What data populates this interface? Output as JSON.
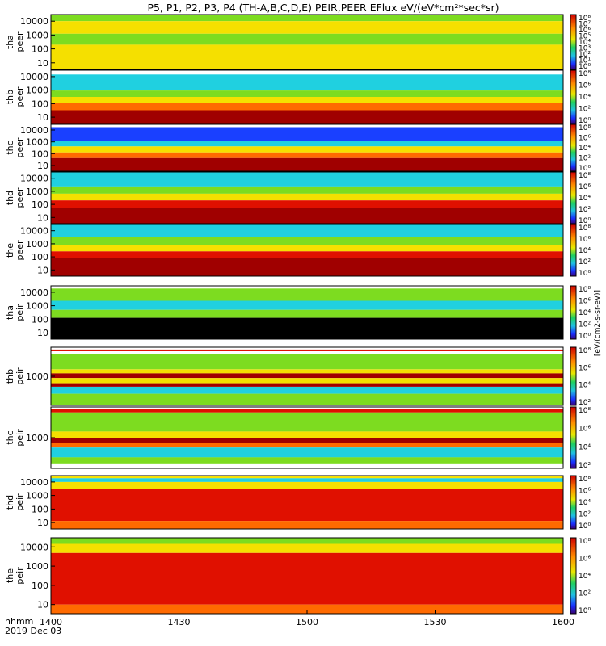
{
  "title": "P5, P1, P2, P3, P4 (TH-A,B,C,D,E) PEIR,PEER EFlux eV/(eV*cm²*sec*sr)",
  "x_axis": {
    "label_line1": "hhmm",
    "label_line2": "2019 Dec 03",
    "ticks": [
      "1400",
      "1430",
      "1500",
      "1530",
      "1600"
    ]
  },
  "colorbar_label": "[eV/(cm2-s-sr-eV)]",
  "palette": {
    "dark_red": "#a00000",
    "red": "#e01000",
    "orange": "#ff6a00",
    "yellow": "#f5e000",
    "green": "#7ddc20",
    "cyan": "#20d0e0",
    "blue": "#1a40ff",
    "black": "#000000"
  },
  "chart_data": {
    "type": "heatmap",
    "x": {
      "ticks": [
        "1400",
        "1430",
        "1500",
        "1530",
        "1600"
      ],
      "range_hhmm": [
        "1400",
        "1600"
      ]
    },
    "panels": [
      {
        "id": "tha-peer",
        "label_line1": "tha",
        "label_line2": "peer",
        "y_ticks": [
          "10000",
          "1000",
          "100",
          "10"
        ],
        "cb_ticks": [
          "10⁸",
          "10⁷",
          "10⁶",
          "10⁵",
          "10⁴",
          "10³",
          "10²",
          "10¹",
          "10⁰"
        ],
        "y_scale": "log",
        "bands": [
          {
            "from": 0.0,
            "to": 0.12,
            "color": "green"
          },
          {
            "from": 0.12,
            "to": 0.35,
            "color": "yellow"
          },
          {
            "from": 0.35,
            "to": 0.55,
            "color": "green"
          },
          {
            "from": 0.55,
            "to": 1.0,
            "color": "yellow"
          }
        ]
      },
      {
        "id": "thb-peer",
        "label_line1": "thb",
        "label_line2": "peer",
        "y_ticks": [
          "10000",
          "1000",
          "100",
          "10"
        ],
        "cb_ticks": [
          "10⁸",
          "10⁶",
          "10⁴",
          "10²",
          "10⁰"
        ],
        "y_scale": "log",
        "bands": [
          {
            "from": 0.0,
            "to": 0.08,
            "color": "white"
          },
          {
            "from": 0.08,
            "to": 0.38,
            "color": "cyan"
          },
          {
            "from": 0.38,
            "to": 0.5,
            "color": "green"
          },
          {
            "from": 0.5,
            "to": 0.62,
            "color": "yellow"
          },
          {
            "from": 0.62,
            "to": 0.75,
            "color": "orange"
          },
          {
            "from": 0.75,
            "to": 1.0,
            "color": "dark_red"
          }
        ]
      },
      {
        "id": "thc-peer",
        "label_line1": "thc",
        "label_line2": "peer",
        "y_ticks": [
          "10000",
          "1000",
          "100",
          "10"
        ],
        "cb_ticks": [
          "10⁸",
          "10⁶",
          "10⁴",
          "10²",
          "10⁰"
        ],
        "y_scale": "log",
        "bands": [
          {
            "from": 0.0,
            "to": 0.06,
            "color": "white"
          },
          {
            "from": 0.06,
            "to": 0.35,
            "color": "blue"
          },
          {
            "from": 0.35,
            "to": 0.47,
            "color": "cyan"
          },
          {
            "from": 0.47,
            "to": 0.6,
            "color": "yellow"
          },
          {
            "from": 0.6,
            "to": 0.72,
            "color": "orange"
          },
          {
            "from": 0.72,
            "to": 1.0,
            "color": "dark_red"
          }
        ]
      },
      {
        "id": "thd-peer",
        "label_line1": "thd",
        "label_line2": "peer",
        "y_ticks": [
          "10000",
          "1000",
          "100",
          "10"
        ],
        "cb_ticks": [
          "10⁸",
          "10⁶",
          "10⁴",
          "10²",
          "10⁰"
        ],
        "y_scale": "log",
        "bands": [
          {
            "from": 0.0,
            "to": 0.28,
            "color": "cyan"
          },
          {
            "from": 0.28,
            "to": 0.42,
            "color": "green"
          },
          {
            "from": 0.42,
            "to": 0.55,
            "color": "yellow"
          },
          {
            "from": 0.55,
            "to": 0.7,
            "color": "red"
          },
          {
            "from": 0.7,
            "to": 1.0,
            "color": "dark_red"
          }
        ]
      },
      {
        "id": "the-peer",
        "label_line1": "the",
        "label_line2": "peer",
        "y_ticks": [
          "10000",
          "1000",
          "100",
          "10"
        ],
        "cb_ticks": [
          "10⁸",
          "10⁶",
          "10⁴",
          "10²",
          "10⁰"
        ],
        "y_scale": "log",
        "bands": [
          {
            "from": 0.0,
            "to": 0.25,
            "color": "cyan"
          },
          {
            "from": 0.25,
            "to": 0.4,
            "color": "green"
          },
          {
            "from": 0.4,
            "to": 0.52,
            "color": "yellow"
          },
          {
            "from": 0.52,
            "to": 0.65,
            "color": "red"
          },
          {
            "from": 0.65,
            "to": 1.0,
            "color": "dark_red"
          }
        ]
      },
      {
        "id": "tha-peir",
        "label_line1": "tha",
        "label_line2": "peir",
        "y_ticks": [
          "10000",
          "1000",
          "100",
          "10"
        ],
        "cb_ticks": [
          "10⁸",
          "10⁶",
          "10⁴",
          "10²",
          "10⁰"
        ],
        "y_scale": "log",
        "bands": [
          {
            "from": 0.0,
            "to": 0.05,
            "color": "white"
          },
          {
            "from": 0.05,
            "to": 0.28,
            "color": "green"
          },
          {
            "from": 0.28,
            "to": 0.45,
            "color": "cyan"
          },
          {
            "from": 0.45,
            "to": 0.6,
            "color": "green"
          },
          {
            "from": 0.6,
            "to": 1.0,
            "color": "black"
          }
        ]
      },
      {
        "id": "thb-peir",
        "label_line1": "thb",
        "label_line2": "peir",
        "y_ticks": [
          "1000"
        ],
        "cb_ticks": [
          "10⁸",
          "10⁶",
          "10⁴",
          "10²"
        ],
        "y_scale": "log",
        "bands": [
          {
            "from": 0.0,
            "to": 0.04,
            "color": "white"
          },
          {
            "from": 0.04,
            "to": 0.07,
            "color": "red"
          },
          {
            "from": 0.07,
            "to": 0.12,
            "color": "white"
          },
          {
            "from": 0.12,
            "to": 0.38,
            "color": "green"
          },
          {
            "from": 0.38,
            "to": 0.45,
            "color": "yellow"
          },
          {
            "from": 0.45,
            "to": 0.53,
            "color": "dark_red"
          },
          {
            "from": 0.53,
            "to": 0.62,
            "color": "yellow"
          },
          {
            "from": 0.62,
            "to": 0.68,
            "color": "dark_red"
          },
          {
            "from": 0.68,
            "to": 0.8,
            "color": "cyan"
          },
          {
            "from": 0.8,
            "to": 1.0,
            "color": "green"
          }
        ]
      },
      {
        "id": "thc-peir",
        "label_line1": "thc",
        "label_line2": "peir",
        "y_ticks": [
          "1000"
        ],
        "cb_ticks": [
          "10⁸",
          "10⁶",
          "10⁴",
          "10²"
        ],
        "y_scale": "log",
        "bands": [
          {
            "from": 0.0,
            "to": 0.04,
            "color": "white"
          },
          {
            "from": 0.04,
            "to": 0.09,
            "color": "red"
          },
          {
            "from": 0.09,
            "to": 0.4,
            "color": "green"
          },
          {
            "from": 0.4,
            "to": 0.5,
            "color": "yellow"
          },
          {
            "from": 0.5,
            "to": 0.58,
            "color": "dark_red"
          },
          {
            "from": 0.58,
            "to": 0.66,
            "color": "orange"
          },
          {
            "from": 0.66,
            "to": 0.82,
            "color": "cyan"
          },
          {
            "from": 0.82,
            "to": 0.92,
            "color": "green"
          },
          {
            "from": 0.92,
            "to": 1.0,
            "color": "white"
          }
        ]
      },
      {
        "id": "thd-peir",
        "label_line1": "thd",
        "label_line2": "peir",
        "y_ticks": [
          "10000",
          "1000",
          "100",
          "10"
        ],
        "cb_ticks": [
          "10⁸",
          "10⁶",
          "10⁴",
          "10²",
          "10⁰"
        ],
        "y_scale": "log",
        "bands": [
          {
            "from": 0.0,
            "to": 0.05,
            "color": "yellow"
          },
          {
            "from": 0.05,
            "to": 0.12,
            "color": "cyan"
          },
          {
            "from": 0.12,
            "to": 0.25,
            "color": "yellow"
          },
          {
            "from": 0.25,
            "to": 0.85,
            "color": "red"
          },
          {
            "from": 0.85,
            "to": 1.0,
            "color": "orange"
          }
        ]
      },
      {
        "id": "the-peir",
        "label_line1": "the",
        "label_line2": "peir",
        "y_ticks": [
          "10000",
          "1000",
          "100",
          "10"
        ],
        "cb_ticks": [
          "10⁸",
          "10⁶",
          "10⁴",
          "10²",
          "10⁰"
        ],
        "y_scale": "log",
        "bands": [
          {
            "from": 0.0,
            "to": 0.08,
            "color": "green"
          },
          {
            "from": 0.08,
            "to": 0.2,
            "color": "yellow"
          },
          {
            "from": 0.2,
            "to": 0.88,
            "color": "red"
          },
          {
            "from": 0.88,
            "to": 1.0,
            "color": "orange"
          }
        ]
      }
    ]
  }
}
